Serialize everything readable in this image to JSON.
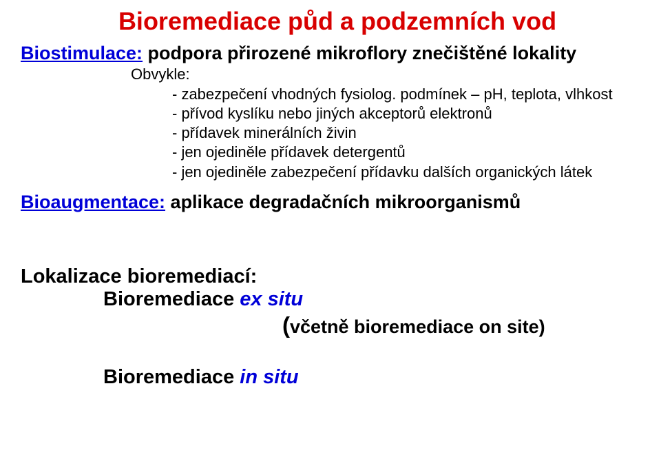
{
  "colors": {
    "red": "#d80000",
    "blue": "#0000d8",
    "black_italic_blue": "#0000d8",
    "black": "#000000",
    "background": "#ffffff"
  },
  "fontsizes": {
    "title": 36,
    "section_label": 27,
    "section_rest": 27,
    "obvykle": 22,
    "bullet": 22,
    "bioaug_bold": 27,
    "bioaug_rest": 27,
    "lokalizace": 29,
    "sub_bold": 29,
    "sub_italic": 29,
    "onsite": 27,
    "insitu_bold": 29,
    "insitu_italic": 29
  },
  "title": "Bioremediace půd a podzemních vod",
  "biostim": {
    "label": "Biostimulace:",
    "rest": " podpora přirozené mikroflory znečištěné lokality",
    "obvykle": "Obvykle:",
    "bullets": [
      "- zabezpečení vhodných fysiolog. podmínek – pH, teplota, vlhkost",
      "- přívod kyslíku nebo jiných akceptorů elektronů",
      "- přídavek minerálních živin",
      "- jen ojediněle přídavek detergentů",
      "- jen ojediněle zabezpečení přídavku dalších organických látek"
    ]
  },
  "bioaug": {
    "label": "Bioaugmentace:",
    "rest": " aplikace degradačních mikroorganismů"
  },
  "lokalizace": {
    "heading": "Lokalizace bioremediací:",
    "exsitu_bold": "Bioremediace ",
    "exsitu_italic": "ex situ",
    "onsite_paren_open": "(",
    "onsite_rest": "včetně bioremediace on site)",
    "insitu_bold": "Bioremediace ",
    "insitu_italic": "in situ"
  }
}
